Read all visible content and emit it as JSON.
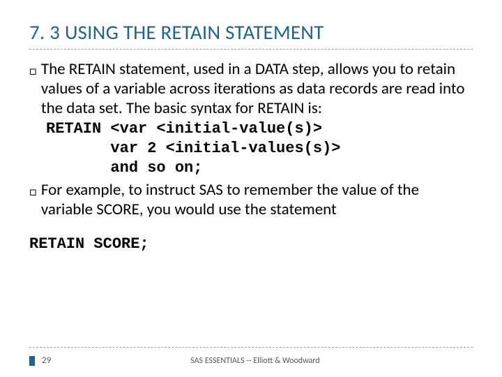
{
  "colors": {
    "title_color": "#1f6391",
    "text_color": "#000000",
    "divider_color": "#9aa0a6",
    "footer_text_color": "#585858",
    "page_marker_color": "#1f6391",
    "background": "#ffffff"
  },
  "typography": {
    "title_fontsize": 29,
    "body_fontsize": 23,
    "code_fontsize": 22,
    "footer_fontsize": 13,
    "body_font": "Calibri",
    "code_font": "Courier New"
  },
  "title": "7. 3 USING THE RETAIN STATEMENT",
  "bullets": [
    {
      "glyph": "□",
      "text": "The RETAIN statement, used in a DATA step, allows you to retain values of a variable across iterations as data records are read into the data set. The basic syntax for RETAIN is:"
    },
    {
      "glyph": "□",
      "text": "For example, to instruct SAS to remember the value of the variable SCORE, you would use the statement"
    }
  ],
  "syntax": {
    "line1": "RETAIN <var <initial-value(s)>",
    "line2": "       var 2 <initial-values(s)>",
    "line3": "       and so on;"
  },
  "example_code": "RETAIN SCORE;",
  "footer": {
    "page": "29",
    "source": "SAS ESSENTIALS -- Elliott & Woodward"
  }
}
